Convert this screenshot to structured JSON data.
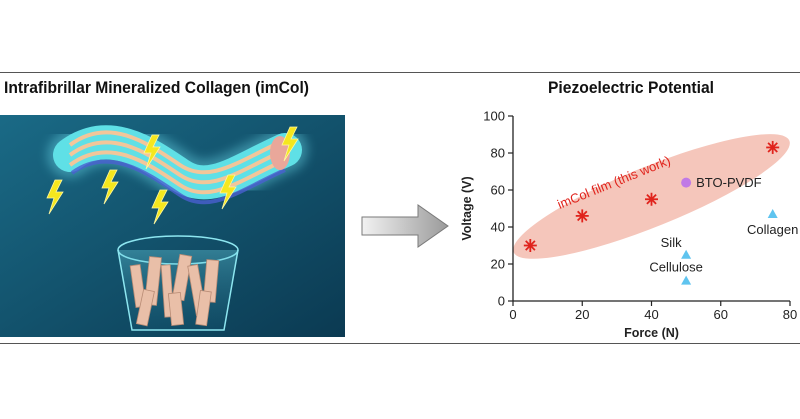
{
  "left_panel": {
    "title": "Intrafibrillar Mineralized Collagen (imCol)"
  },
  "right_panel": {
    "title": "Piezoelectric Potential"
  },
  "colors": {
    "accent": "#e0231c",
    "ellipse": "#f5c6bb",
    "triangle": "#5fc4ef",
    "circle": "#c07ae6",
    "illustration_bg": "#0f4f68"
  },
  "icons": {
    "process_arrow": "arrow-right-icon",
    "lightning": "lightning-icon"
  },
  "chart_data": {
    "type": "scatter",
    "xlabel": "Force (N)",
    "ylabel": "Voltage (V)",
    "xlim": [
      0,
      80
    ],
    "ylim": [
      0,
      100
    ],
    "xticks": [
      0,
      20,
      40,
      60,
      80
    ],
    "yticks": [
      0,
      20,
      40,
      60,
      80,
      100
    ],
    "grid": false,
    "series": [
      {
        "name": "imCol film (this work)",
        "marker": "asterisk",
        "color": "#e0231c",
        "points": [
          {
            "x": 5,
            "y": 30
          },
          {
            "x": 20,
            "y": 46
          },
          {
            "x": 40,
            "y": 55
          },
          {
            "x": 75,
            "y": 83
          }
        ]
      },
      {
        "name": "BTO-PVDF",
        "marker": "circle",
        "color": "#c07ae6",
        "points": [
          {
            "x": 50,
            "y": 64
          }
        ]
      },
      {
        "name": "Collagen",
        "marker": "triangle",
        "color": "#5fc4ef",
        "points": [
          {
            "x": 75,
            "y": 47
          }
        ]
      },
      {
        "name": "Silk",
        "marker": "triangle",
        "color": "#5fc4ef",
        "points": [
          {
            "x": 50,
            "y": 25
          }
        ]
      },
      {
        "name": "Cellulose",
        "marker": "triangle",
        "color": "#5fc4ef",
        "points": [
          {
            "x": 50,
            "y": 11
          }
        ]
      }
    ]
  }
}
